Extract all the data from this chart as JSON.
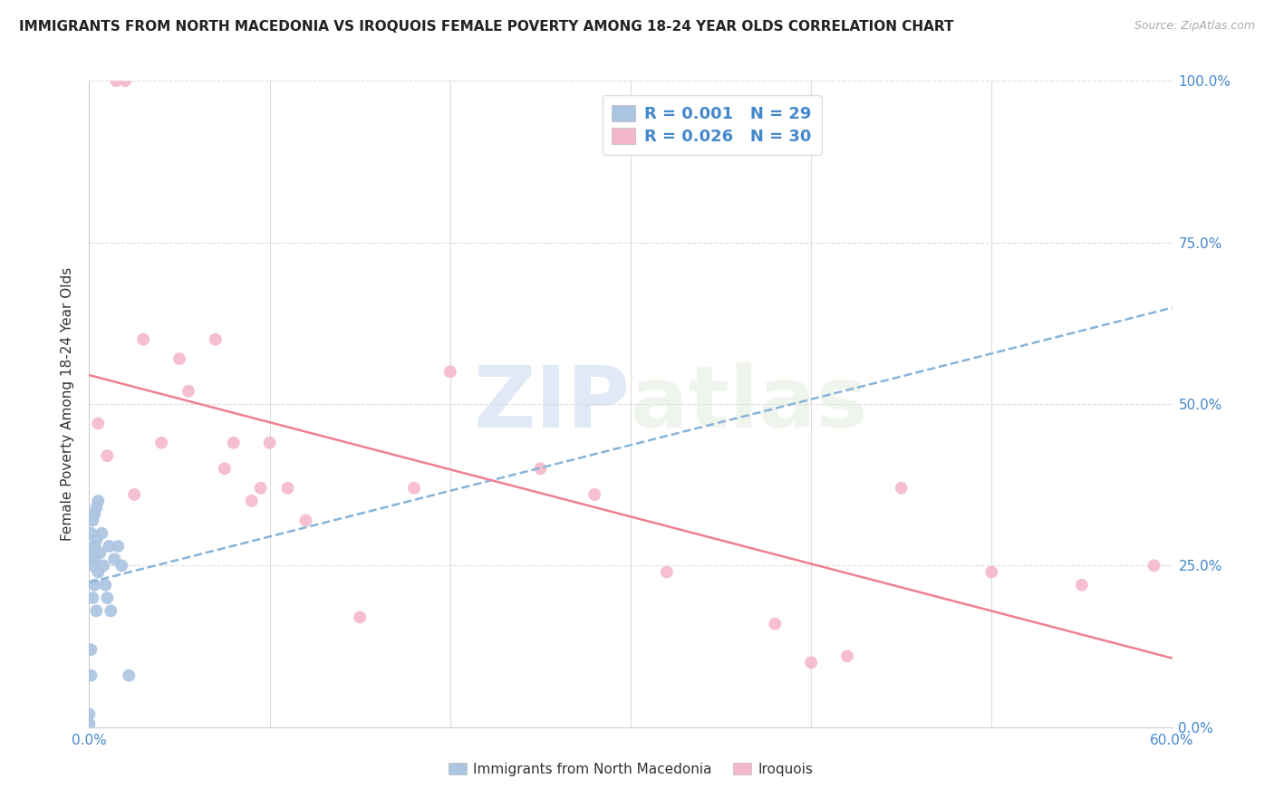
{
  "title": "IMMIGRANTS FROM NORTH MACEDONIA VS IROQUOIS FEMALE POVERTY AMONG 18-24 YEAR OLDS CORRELATION CHART",
  "source": "Source: ZipAtlas.com",
  "ylabel_label": "Female Poverty Among 18-24 Year Olds",
  "legend_label1": "Immigrants from North Macedonia",
  "legend_label2": "Iroquois",
  "legend_r1": "R = 0.001",
  "legend_n1": "N = 29",
  "legend_r2": "R = 0.026",
  "legend_n2": "N = 30",
  "blue_color": "#aac4e2",
  "pink_color": "#f5b8ca",
  "blue_line_color": "#88b4d8",
  "pink_line_color": "#f08090",
  "blue_x": [
    0.0,
    0.0,
    0.001,
    0.001,
    0.001,
    0.001,
    0.002,
    0.002,
    0.002,
    0.003,
    0.003,
    0.003,
    0.003,
    0.004,
    0.004,
    0.004,
    0.005,
    0.005,
    0.006,
    0.007,
    0.008,
    0.009,
    0.01,
    0.011,
    0.012,
    0.014,
    0.016,
    0.018,
    0.022
  ],
  "blue_y": [
    0.005,
    0.02,
    0.08,
    0.12,
    0.27,
    0.3,
    0.2,
    0.25,
    0.32,
    0.22,
    0.26,
    0.28,
    0.33,
    0.18,
    0.29,
    0.34,
    0.24,
    0.35,
    0.27,
    0.3,
    0.25,
    0.22,
    0.2,
    0.28,
    0.18,
    0.26,
    0.28,
    0.25,
    0.08
  ],
  "pink_x": [
    0.005,
    0.01,
    0.015,
    0.02,
    0.025,
    0.03,
    0.04,
    0.05,
    0.055,
    0.07,
    0.075,
    0.08,
    0.09,
    0.095,
    0.1,
    0.11,
    0.12,
    0.15,
    0.18,
    0.2,
    0.25,
    0.28,
    0.32,
    0.38,
    0.4,
    0.42,
    0.45,
    0.5,
    0.55,
    0.59
  ],
  "pink_y": [
    0.47,
    0.42,
    1.0,
    1.0,
    0.36,
    0.6,
    0.44,
    0.57,
    0.52,
    0.6,
    0.4,
    0.44,
    0.35,
    0.37,
    0.44,
    0.37,
    0.32,
    0.17,
    0.37,
    0.55,
    0.4,
    0.36,
    0.24,
    0.16,
    0.1,
    0.11,
    0.37,
    0.24,
    0.22,
    0.25
  ],
  "xlim": [
    0.0,
    0.6
  ],
  "ylim": [
    0.0,
    1.0
  ],
  "xtick_positions": [
    0.0,
    0.1,
    0.2,
    0.3,
    0.4,
    0.5,
    0.6
  ],
  "ytick_positions": [
    0.0,
    0.25,
    0.5,
    0.75,
    1.0
  ],
  "x_edge_labels": {
    "0": "0.0%",
    "6": "60.0%"
  },
  "y_edge_labels": {
    "0": "0.0%",
    "1": "25.0%",
    "2": "50.0%",
    "3": "75.0%",
    "4": "100.0%"
  },
  "watermark_zip": "ZIP",
  "watermark_atlas": "atlas",
  "background_color": "#ffffff",
  "grid_color": "#dddddd",
  "title_fontsize": 11,
  "axis_label_fontsize": 11,
  "tick_fontsize": 11
}
